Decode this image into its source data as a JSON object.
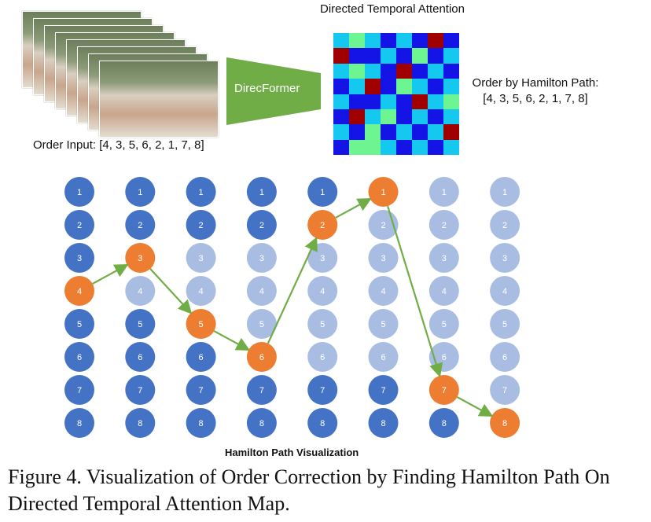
{
  "order_input_label": "Order Input: [4, 3, 5, 6, 2, 1, 7, 8]",
  "model_label": "DirecFormer",
  "attention_title": "Directed Temporal Attention",
  "hamilton_order_label": "Order by Hamilton Path:",
  "hamilton_order_value": "[4, 3, 5, 6, 2, 1, 7, 8]",
  "viz_label": "Hamilton Path Visualization",
  "caption": "Figure 4. Visualization of Order Correction by Finding Hamilton Path On Directed Temporal Attention Map.",
  "colors": {
    "arrow_fill": "#70ad47",
    "node_active": "#4472c4",
    "node_faded": "#a9bde3",
    "node_selected": "#ed7d31",
    "path": "#70ad47"
  },
  "attention_cells": [
    [
      "cyan",
      "lightgreen",
      "cyan",
      "blue",
      "cyan",
      "blue",
      "darkred",
      "blue"
    ],
    [
      "darkred",
      "blue",
      "blue",
      "cyan",
      "blue",
      "lightgreen",
      "blue",
      "cyan"
    ],
    [
      "cyan",
      "lightgreen",
      "cyan",
      "blue",
      "darkred",
      "blue",
      "cyan",
      "blue"
    ],
    [
      "blue",
      "cyan",
      "darkred",
      "blue",
      "lightgreen",
      "cyan",
      "blue",
      "cyan"
    ],
    [
      "cyan",
      "blue",
      "blue",
      "cyan",
      "blue",
      "darkred",
      "cyan",
      "lightgreen"
    ],
    [
      "blue",
      "darkred",
      "cyan",
      "lightgreen",
      "blue",
      "cyan",
      "blue",
      "cyan"
    ],
    [
      "cyan",
      "blue",
      "lightgreen",
      "blue",
      "cyan",
      "blue",
      "cyan",
      "darkred"
    ],
    [
      "blue",
      "lightgreen",
      "lightgreen",
      "cyan",
      "blue",
      "cyan",
      "blue",
      "cyan"
    ]
  ],
  "node_labels": [
    "1",
    "2",
    "3",
    "4",
    "5",
    "6",
    "7",
    "8"
  ],
  "columns": [
    {
      "selected": 4,
      "faded": []
    },
    {
      "selected": 3,
      "faded": [
        4
      ]
    },
    {
      "selected": 5,
      "faded": [
        3,
        4
      ]
    },
    {
      "selected": 6,
      "faded": [
        3,
        4,
        5
      ]
    },
    {
      "selected": 2,
      "faded": [
        3,
        4,
        5,
        6
      ]
    },
    {
      "selected": 1,
      "faded": [
        2,
        3,
        4,
        5,
        6
      ]
    },
    {
      "selected": 7,
      "faded": [
        1,
        2,
        3,
        4,
        5,
        6
      ]
    },
    {
      "selected": 8,
      "faded": [
        1,
        2,
        3,
        4,
        5,
        6,
        7
      ]
    }
  ]
}
